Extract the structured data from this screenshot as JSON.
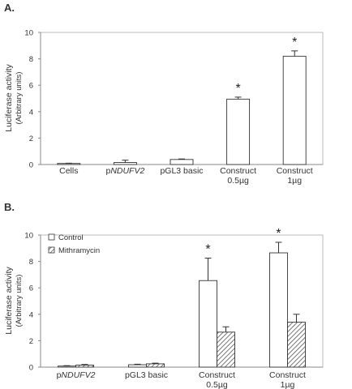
{
  "chart_data": [
    {
      "panel_label": "A.",
      "type": "bar",
      "ylabel_line1": "Luciferase activity",
      "ylabel_line2": "(Arbitrary units)",
      "ylim": [
        0,
        10
      ],
      "yticks": [
        "0",
        "2",
        "4",
        "6",
        "8",
        "10"
      ],
      "grid": false,
      "categories": [
        {
          "label": "Cells",
          "label2": ""
        },
        {
          "label": "pNDUFV2",
          "label2": ""
        },
        {
          "label": "pGL3 basic",
          "label2": ""
        },
        {
          "label": "Construct",
          "label2": "0.5µg"
        },
        {
          "label": "Construct",
          "label2": "1µg"
        }
      ],
      "series": [
        {
          "values": [
            0.08,
            0.15,
            0.38,
            4.95,
            8.2
          ],
          "errors": [
            0.02,
            0.18,
            0.04,
            0.15,
            0.4
          ],
          "fill": "#ffffff"
        }
      ],
      "significance": [
        {
          "category": 3,
          "text": "*"
        },
        {
          "category": 4,
          "text": "*"
        }
      ]
    },
    {
      "panel_label": "B.",
      "type": "bar",
      "ylabel_line1": "Luciferase activity",
      "ylabel_line2": "(Arbitrary units)",
      "ylim": [
        0,
        10
      ],
      "yticks": [
        "0",
        "2",
        "4",
        "6",
        "8",
        "10"
      ],
      "grid": false,
      "legend_position": "top-left",
      "categories": [
        {
          "label": "pNDUFV2",
          "label2": ""
        },
        {
          "label": "pGL3 basic",
          "label2": ""
        },
        {
          "label": "Construct",
          "label2": "0.5µg"
        },
        {
          "label": "Construct",
          "label2": "1µg"
        }
      ],
      "series": [
        {
          "name": "Control",
          "values": [
            0.08,
            0.18,
            6.55,
            8.65
          ],
          "errors": [
            0.03,
            0.04,
            1.7,
            0.8
          ],
          "fill": "#ffffff"
        },
        {
          "name": "Mithramycin",
          "values": [
            0.15,
            0.25,
            2.65,
            3.4
          ],
          "errors": [
            0.05,
            0.05,
            0.4,
            0.6
          ],
          "fill": "hatch"
        }
      ],
      "significance": [
        {
          "category": 2,
          "text": "*"
        },
        {
          "category": 3,
          "text": "*"
        }
      ]
    }
  ]
}
